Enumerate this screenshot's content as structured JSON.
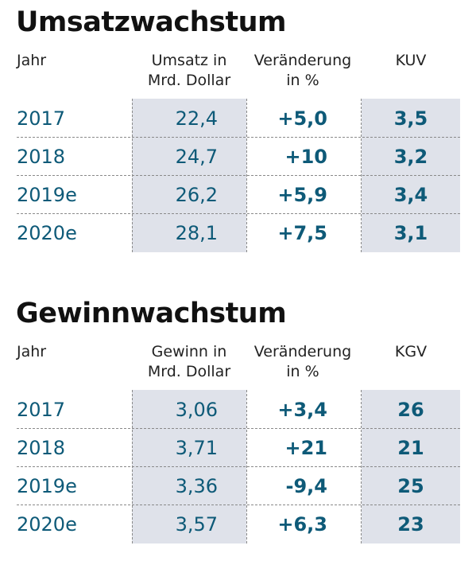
{
  "sections": [
    {
      "title": "Umsatzwachstum",
      "headers": {
        "year": "Jahr",
        "value_line1": "Umsatz in",
        "value_line2": "Mrd. Dollar",
        "change_line1": "Veränderung",
        "change_line2": "in %",
        "ratio": "KUV"
      },
      "rows": [
        {
          "year": "2017",
          "value": "22,4",
          "change": "+5,0",
          "ratio": "3,5"
        },
        {
          "year": "2018",
          "value": "24,7",
          "change": "+10",
          "ratio": "3,2"
        },
        {
          "year": "2019e",
          "value": "26,2",
          "change": "+5,9",
          "ratio": "3,4"
        },
        {
          "year": "2020e",
          "value": "28,1",
          "change": "+7,5",
          "ratio": "3,1"
        }
      ]
    },
    {
      "title": "Gewinnwachstum",
      "headers": {
        "year": "Jahr",
        "value_line1": "Gewinn in",
        "value_line2": "Mrd. Dollar",
        "change_line1": "Veränderung",
        "change_line2": "in %",
        "ratio": "KGV"
      },
      "rows": [
        {
          "year": "2017",
          "value": "3,06",
          "change": "+3,4",
          "ratio": "26"
        },
        {
          "year": "2018",
          "value": "3,71",
          "change": "+21",
          "ratio": "21"
        },
        {
          "year": "2019e",
          "value": "3,36",
          "change": "-9,4",
          "ratio": "25"
        },
        {
          "year": "2020e",
          "value": "3,57",
          "change": "+6,3",
          "ratio": "23"
        }
      ]
    }
  ],
  "colors": {
    "data_text": "#0e5a78",
    "column_shade": "#dfe2ea",
    "divider": "#8a8a8a"
  }
}
